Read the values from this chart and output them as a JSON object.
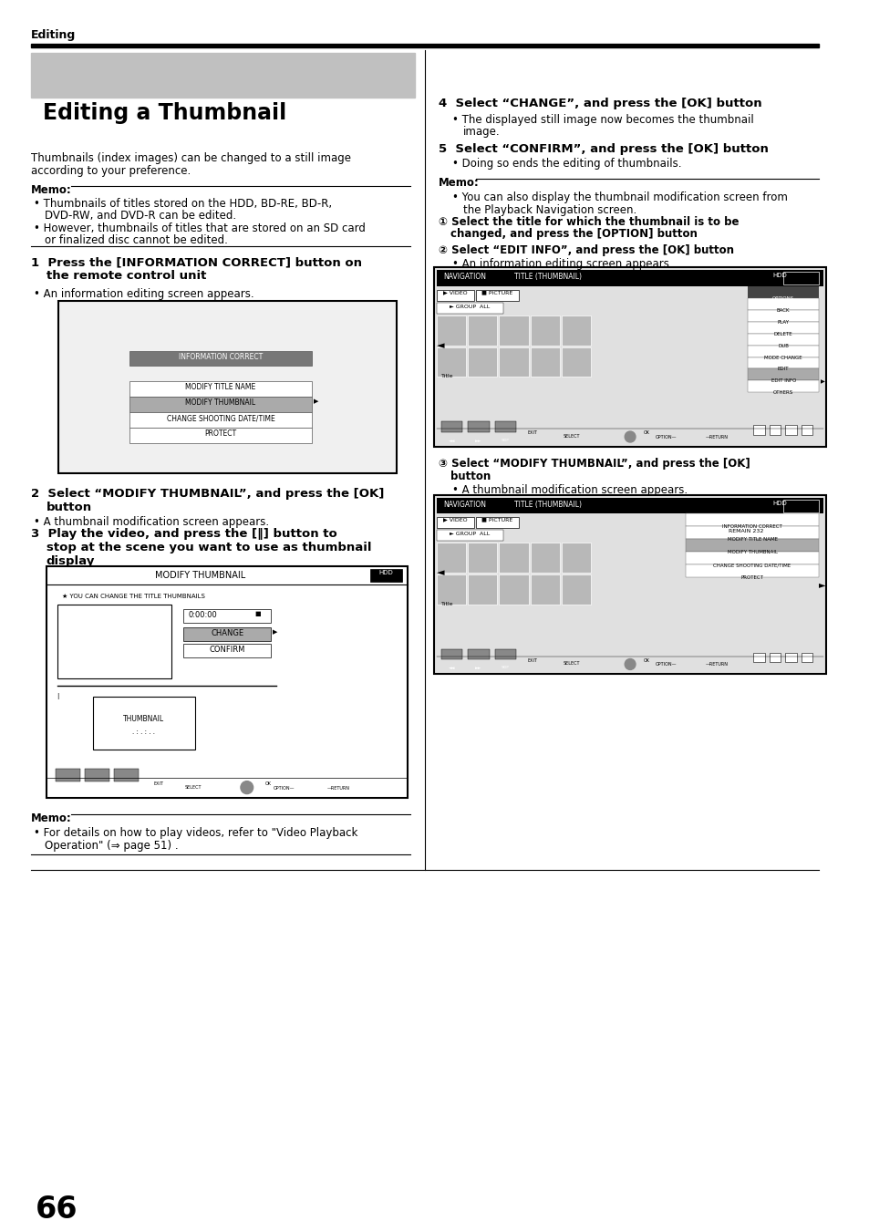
{
  "bg_color": "#ffffff",
  "header_text": "Editing",
  "title_text": "Editing a Thumbnail",
  "title_bg": "#c0c0c0",
  "page_number": "66"
}
